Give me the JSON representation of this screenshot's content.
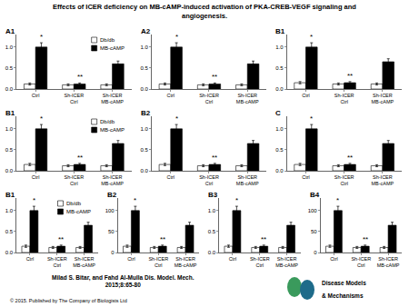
{
  "title": "Effects of ICER deficiency on MB-cAMP-induced activation of PKA-CREB-VEGF signaling and\nangiogenesis.",
  "footer": [
    "Milad S. Bitar, and Fahd Al-Mulla Dis. Model. Mech.\n2015;8:65-80",
    "© 2015. Published by The Company of Biologists Ltd"
  ],
  "logo": [
    "Disease Models",
    "& Mechanisms"
  ],
  "chart_data": [
    {
      "type": "bar",
      "title": "A1",
      "categories": [
        "Ctrl",
        "Sh-ICER\nCtrl",
        "Sh-ICER\nMB-cAMP"
      ],
      "series": [
        {
          "name": "Db/db",
          "color": "white",
          "values": [
            0.12,
            0.1,
            0.1
          ],
          "errors": [
            0.0238,
            0.022,
            0.022
          ]
        },
        {
          "name": "MB-cAMP",
          "color": "black",
          "values": [
            1.0,
            0.12,
            0.6
          ],
          "errors": [
            0.103,
            0.0238,
            0.067
          ]
        }
      ],
      "annotations": [
        {
          "text": "*",
          "category": "Ctrl",
          "series": "MB-cAMP"
        },
        {
          "text": "**",
          "category": "Sh-ICER\nCtrl",
          "series": "MB-cAMP"
        }
      ],
      "ylim": [
        0,
        1.3
      ],
      "yticks": [
        {
          "value": 0,
          "label": "0.0"
        },
        0.5,
        {
          "value": 1.0,
          "label": "1.0"
        }
      ],
      "grid": false,
      "legend": "upper right"
    },
    {
      "type": "bar",
      "title": "A2",
      "categories": [
        "Ctrl",
        "Sh-ICER\nCtrl",
        "Sh-ICER\nMB-cAMP"
      ],
      "series": [
        {
          "name": "Db/db",
          "color": "white",
          "values": [
            0.12,
            0.1,
            0.1
          ],
          "errors": [
            0.0238,
            0.022,
            0.022
          ]
        },
        {
          "name": "MB-cAMP",
          "color": "black",
          "values": [
            1.0,
            0.12,
            0.6
          ],
          "errors": [
            0.103,
            0.0238,
            0.067
          ]
        }
      ],
      "annotations": [
        {
          "text": "*",
          "category": "Ctrl",
          "series": "MB-cAMP"
        },
        {
          "text": "**",
          "category": "Sh-ICER\nCtrl",
          "series": "MB-cAMP"
        }
      ],
      "ylim": [
        0,
        1.3
      ],
      "yticks": [
        {
          "value": 0,
          "label": "0.0"
        },
        0.5,
        {
          "value": 1.0,
          "label": "1.0"
        }
      ],
      "grid": false
    },
    {
      "type": "bar",
      "title": "B1",
      "categories": [
        "Ctrl",
        "Sh-ICER\nCtrl",
        "Sh-ICER\nMB-cAMP"
      ],
      "series": [
        {
          "name": "Db/db",
          "color": "white",
          "values": [
            0.15,
            0.12,
            0.12
          ],
          "errors": [
            0.0265,
            0.0238,
            0.0238
          ]
        },
        {
          "name": "MB-cAMP",
          "color": "black",
          "values": [
            1.0,
            0.15,
            0.65
          ],
          "errors": [
            0.103,
            0.0265,
            0.0715
          ]
        }
      ],
      "annotations": [
        {
          "text": "*",
          "category": "Ctrl",
          "series": "MB-cAMP"
        },
        {
          "text": "**",
          "category": "Sh-ICER\nCtrl",
          "series": "MB-cAMP"
        }
      ],
      "ylim": [
        0,
        1.3
      ],
      "yticks": [
        {
          "value": 0,
          "label": "0.0"
        },
        0.5,
        {
          "value": 1.0,
          "label": "1.0"
        }
      ],
      "grid": false
    },
    {
      "type": "bar",
      "title": "B1",
      "categories": [
        "Ctrl",
        "Sh-ICER\nCtrl",
        "Sh-ICER\nMB-cAMP"
      ],
      "series": [
        {
          "name": "Db/db",
          "color": "white",
          "values": [
            0.15,
            0.12,
            0.12
          ],
          "errors": [
            0.0265,
            0.0238,
            0.0238
          ]
        },
        {
          "name": "MB-cAMP",
          "color": "black",
          "values": [
            1.0,
            0.15,
            0.65
          ],
          "errors": [
            0.103,
            0.0265,
            0.0715
          ]
        }
      ],
      "annotations": [
        {
          "text": "*",
          "category": "Ctrl",
          "series": "MB-cAMP"
        },
        {
          "text": "**",
          "category": "Sh-ICER\nCtrl",
          "series": "MB-cAMP"
        }
      ],
      "ylim": [
        0,
        1.3
      ],
      "yticks": [
        {
          "value": 0,
          "label": "0.0"
        },
        0.5,
        {
          "value": 1.0,
          "label": "1.0"
        }
      ],
      "grid": false,
      "legend": "upper right"
    },
    {
      "type": "bar",
      "title": "B2",
      "categories": [
        "Ctrl",
        "Sh-ICER\nCtrl",
        "Sh-ICER\nMB-cAMP"
      ],
      "series": [
        {
          "name": "Db/db",
          "color": "white",
          "values": [
            0.15,
            0.12,
            0.12
          ],
          "errors": [
            0.0265,
            0.0238,
            0.0238
          ]
        },
        {
          "name": "MB-cAMP",
          "color": "black",
          "values": [
            1.0,
            0.15,
            0.65
          ],
          "errors": [
            0.103,
            0.0265,
            0.0715
          ]
        }
      ],
      "annotations": [
        {
          "text": "*",
          "category": "Ctrl",
          "series": "MB-cAMP"
        },
        {
          "text": "**",
          "category": "Sh-ICER\nCtrl",
          "series": "MB-cAMP"
        }
      ],
      "ylim": [
        0,
        1.3
      ],
      "yticks": [
        {
          "value": 0,
          "label": "0.0"
        },
        0.5,
        {
          "value": 1.0,
          "label": "1.0"
        }
      ],
      "grid": false
    },
    {
      "type": "bar",
      "title": "C",
      "categories": [
        "Ctrl",
        "Sh-ICER\nCtrl",
        "Sh-ICER\nMB-cAMP"
      ],
      "series": [
        {
          "name": "Db/db",
          "color": "white",
          "values": [
            0.15,
            0.12,
            0.12
          ],
          "errors": [
            0.0265,
            0.0238,
            0.0238
          ]
        },
        {
          "name": "MB-cAMP",
          "color": "black",
          "values": [
            1.0,
            0.15,
            0.65
          ],
          "errors": [
            0.103,
            0.0265,
            0.0715
          ]
        }
      ],
      "annotations": [
        {
          "text": "*",
          "category": "Ctrl",
          "series": "MB-cAMP"
        },
        {
          "text": "**",
          "category": "Sh-ICER\nCtrl",
          "series": "MB-cAMP"
        }
      ],
      "ylim": [
        0,
        1.3
      ],
      "yticks": [
        {
          "value": 0,
          "label": "0.0"
        },
        0.5,
        {
          "value": 1.0,
          "label": "1.0"
        }
      ],
      "grid": false
    },
    {
      "type": "bar",
      "title": "B1",
      "categories": [
        "Ctrl",
        "Sh-ICER\nCtrl",
        "Sh-ICER\nMB-cAMP"
      ],
      "series": [
        {
          "name": "Db/db",
          "color": "white",
          "values": [
            0.15,
            0.12,
            0.12
          ],
          "errors": [
            0.0265,
            0.0238,
            0.0238
          ]
        },
        {
          "name": "MB-cAMP",
          "color": "black",
          "values": [
            1.0,
            0.15,
            0.65
          ],
          "errors": [
            0.103,
            0.0265,
            0.0715
          ]
        }
      ],
      "annotations": [
        {
          "text": "*",
          "category": "Ctrl",
          "series": "MB-cAMP"
        },
        {
          "text": "**",
          "category": "Sh-ICER\nCtrl",
          "series": "MB-cAMP"
        }
      ],
      "ylim": [
        0,
        1.3
      ],
      "yticks": [
        {
          "value": 0,
          "label": "0.0"
        },
        0.5,
        {
          "value": 1.0,
          "label": "1.0"
        }
      ],
      "grid": false,
      "legend": "upper right"
    },
    {
      "type": "bar",
      "title": "B2",
      "categories": [
        "Ctrl",
        "Sh-ICER\nCtrl",
        "Sh-ICER\nMB-cAMP"
      ],
      "series": [
        {
          "name": "Db/db",
          "color": "white",
          "values": [
            15,
            12,
            12
          ],
          "errors": [
            2.65,
            2.38,
            2.38
          ]
        },
        {
          "name": "MB-cAMP",
          "color": "black",
          "values": [
            100,
            15,
            65
          ],
          "errors": [
            10.3,
            2.65,
            7.15
          ]
        }
      ],
      "annotations": [
        {
          "text": "*",
          "category": "Ctrl",
          "series": "MB-cAMP"
        },
        {
          "text": "**",
          "category": "Sh-ICER\nCtrl",
          "series": "MB-cAMP"
        }
      ],
      "ylim": [
        0,
        130
      ],
      "yticks": [
        0,
        50,
        100
      ],
      "grid": false
    },
    {
      "type": "bar",
      "title": "B3",
      "categories": [
        "Ctrl",
        "Sh-ICER\nCtrl",
        "Sh-ICER\nMB-cAMP"
      ],
      "series": [
        {
          "name": "Db/db",
          "color": "white",
          "values": [
            0.15,
            0.12,
            0.12
          ],
          "errors": [
            0.0265,
            0.0238,
            0.0238
          ]
        },
        {
          "name": "MB-cAMP",
          "color": "black",
          "values": [
            1.0,
            0.15,
            0.65
          ],
          "errors": [
            0.103,
            0.0265,
            0.0715
          ]
        }
      ],
      "annotations": [
        {
          "text": "*",
          "category": "Ctrl",
          "series": "MB-cAMP"
        },
        {
          "text": "**",
          "category": "Sh-ICER\nCtrl",
          "series": "MB-cAMP"
        }
      ],
      "ylim": [
        0,
        1.3
      ],
      "yticks": [
        {
          "value": 0,
          "label": "0.0"
        },
        0.5,
        {
          "value": 1.0,
          "label": "1.0"
        }
      ],
      "grid": false
    },
    {
      "type": "bar",
      "title": "B4",
      "categories": [
        "Ctrl",
        "Sh-ICER\nCtrl",
        "Sh-ICER\nMB-cAMP"
      ],
      "series": [
        {
          "name": "Db/db",
          "color": "white",
          "values": [
            15,
            12,
            12
          ],
          "errors": [
            2.65,
            2.38,
            2.38
          ]
        },
        {
          "name": "MB-cAMP",
          "color": "black",
          "values": [
            100,
            15,
            65
          ],
          "errors": [
            10.3,
            2.65,
            7.15
          ]
        }
      ],
      "annotations": [
        {
          "text": "*",
          "category": "Ctrl",
          "series": "MB-cAMP"
        },
        {
          "text": "**",
          "category": "Sh-ICER\nCtrl",
          "series": "MB-cAMP"
        }
      ],
      "ylim": [
        0,
        130
      ],
      "yticks": [
        0,
        50,
        100
      ],
      "grid": false
    }
  ]
}
